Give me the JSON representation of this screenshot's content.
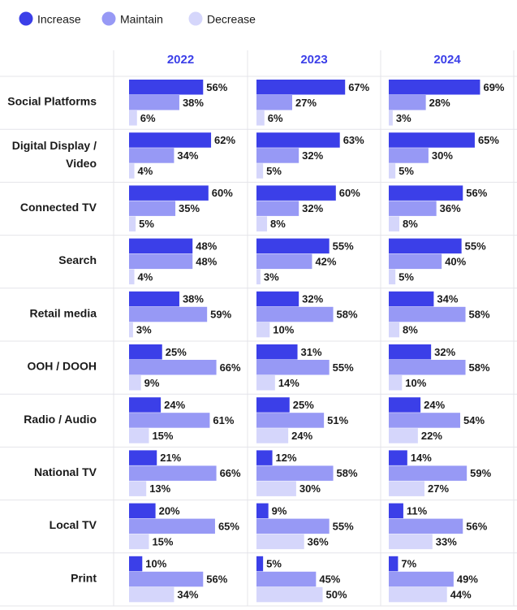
{
  "colors": {
    "increase": "#3b3fe8",
    "maintain": "#9799f5",
    "decrease": "#d5d6fb",
    "grid": "#e4e4ea"
  },
  "chart_data": {
    "type": "bar",
    "orientation": "horizontal",
    "legend": [
      {
        "key": "increase",
        "label": "Increase"
      },
      {
        "key": "maintain",
        "label": "Maintain"
      },
      {
        "key": "decrease",
        "label": "Decrease"
      }
    ],
    "years": [
      "2022",
      "2023",
      "2024"
    ],
    "categories": [
      {
        "label_lines": [
          "Social Platforms"
        ],
        "values": {
          "2022": [
            56,
            38,
            6
          ],
          "2023": [
            67,
            27,
            6
          ],
          "2024": [
            69,
            28,
            3
          ]
        }
      },
      {
        "label_lines": [
          "Digital Display /",
          "Video"
        ],
        "values": {
          "2022": [
            62,
            34,
            4
          ],
          "2023": [
            63,
            32,
            5
          ],
          "2024": [
            65,
            30,
            5
          ]
        }
      },
      {
        "label_lines": [
          "Connected TV"
        ],
        "values": {
          "2022": [
            60,
            35,
            5
          ],
          "2023": [
            60,
            32,
            8
          ],
          "2024": [
            56,
            36,
            8
          ]
        }
      },
      {
        "label_lines": [
          "Search"
        ],
        "values": {
          "2022": [
            48,
            48,
            4
          ],
          "2023": [
            55,
            42,
            3
          ],
          "2024": [
            55,
            40,
            5
          ]
        }
      },
      {
        "label_lines": [
          "Retail media"
        ],
        "values": {
          "2022": [
            38,
            59,
            3
          ],
          "2023": [
            32,
            58,
            10
          ],
          "2024": [
            34,
            58,
            8
          ]
        }
      },
      {
        "label_lines": [
          "OOH / DOOH"
        ],
        "values": {
          "2022": [
            25,
            66,
            9
          ],
          "2023": [
            31,
            55,
            14
          ],
          "2024": [
            32,
            58,
            10
          ]
        }
      },
      {
        "label_lines": [
          "Radio / Audio"
        ],
        "values": {
          "2022": [
            24,
            61,
            15
          ],
          "2023": [
            25,
            51,
            24
          ],
          "2024": [
            24,
            54,
            22
          ]
        }
      },
      {
        "label_lines": [
          "National TV"
        ],
        "values": {
          "2022": [
            21,
            66,
            13
          ],
          "2023": [
            12,
            58,
            30
          ],
          "2024": [
            14,
            59,
            27
          ]
        }
      },
      {
        "label_lines": [
          "Local TV"
        ],
        "values": {
          "2022": [
            20,
            65,
            15
          ],
          "2023": [
            9,
            55,
            36
          ],
          "2024": [
            11,
            56,
            33
          ]
        }
      },
      {
        "label_lines": [
          "Print"
        ],
        "values": {
          "2022": [
            10,
            56,
            34
          ],
          "2023": [
            5,
            45,
            50
          ],
          "2024": [
            7,
            49,
            44
          ]
        }
      }
    ],
    "value_suffix": "%",
    "xlim": [
      0,
      100
    ]
  }
}
